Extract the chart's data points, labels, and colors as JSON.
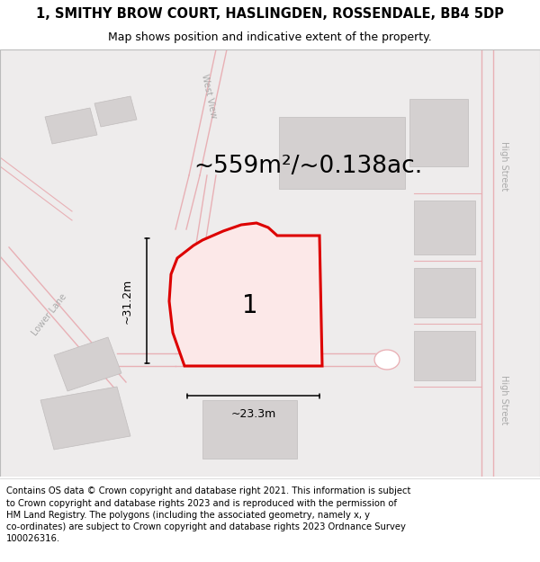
{
  "title": "1, SMITHY BROW COURT, HASLINGDEN, ROSSENDALE, BB4 5DP",
  "subtitle": "Map shows position and indicative extent of the property.",
  "area_label": "~559m²/~0.138ac.",
  "dim_width": "~23.3m",
  "dim_height": "~31.2m",
  "label_number": "1",
  "footer": "Contains OS data © Crown copyright and database right 2021. This information is subject\nto Crown copyright and database rights 2023 and is reproduced with the permission of\nHM Land Registry. The polygons (including the associated geometry, namely x, y\nco-ordinates) are subject to Crown copyright and database rights 2023 Ordnance Survey\n100026316.",
  "map_bg": "#eeecec",
  "building_fill": "#d4d0d0",
  "highlight_color": "#dd0000",
  "highlight_fill": "#fce8e8",
  "road_line_color": "#e8b0b5",
  "text_gray": "#aaaaaa",
  "title_fontsize": 10.5,
  "subtitle_fontsize": 9,
  "area_fontsize": 19,
  "dim_fontsize": 9,
  "footer_fontsize": 7.2,
  "label_fontsize": 20,
  "street_fontsize": 7
}
